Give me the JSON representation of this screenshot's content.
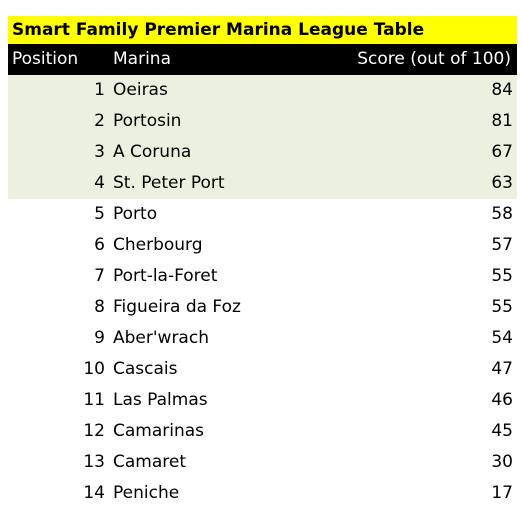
{
  "table": {
    "title": "Smart Family Premier Marina League Table",
    "headers": {
      "position": "Position",
      "marina": "Marina",
      "score": "Score (out of 100)"
    }
  },
  "colors": {
    "title_background": "#ffff00",
    "header_background": "#000000",
    "highlight_background": "#ebf1de"
  },
  "chart_data": {
    "type": "table",
    "title": "Smart Family Premier Marina League Table",
    "columns": [
      "Position",
      "Marina",
      "Score (out of 100)"
    ],
    "highlighted_rows": [
      1,
      2,
      3,
      4
    ],
    "rows": [
      {
        "position": 1,
        "marina": "Oeiras",
        "score": 84
      },
      {
        "position": 2,
        "marina": "Portosin",
        "score": 81
      },
      {
        "position": 3,
        "marina": "A Coruna",
        "score": 67
      },
      {
        "position": 4,
        "marina": "St. Peter Port",
        "score": 63
      },
      {
        "position": 5,
        "marina": "Porto",
        "score": 58
      },
      {
        "position": 6,
        "marina": "Cherbourg",
        "score": 57
      },
      {
        "position": 7,
        "marina": "Port-la-Foret",
        "score": 55
      },
      {
        "position": 8,
        "marina": "Figueira da Foz",
        "score": 55
      },
      {
        "position": 9,
        "marina": "Aber'wrach",
        "score": 54
      },
      {
        "position": 10,
        "marina": "Cascais",
        "score": 47
      },
      {
        "position": 11,
        "marina": "Las Palmas",
        "score": 46
      },
      {
        "position": 12,
        "marina": "Camarinas",
        "score": 45
      },
      {
        "position": 13,
        "marina": "Camaret",
        "score": 30
      },
      {
        "position": 14,
        "marina": "Peniche",
        "score": 17
      }
    ]
  }
}
